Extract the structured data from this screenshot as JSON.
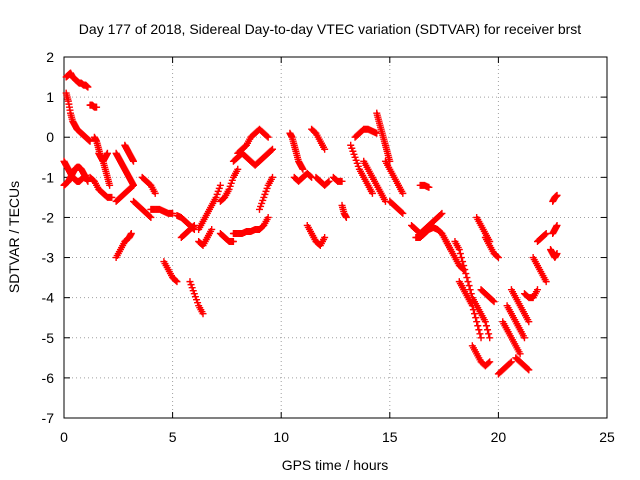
{
  "chart_data": {
    "type": "scatter",
    "title": "Day 177 of 2018, Sidereal Day-to-day VTEC variation (SDTVAR) for receiver brst",
    "xlabel": "GPS time / hours",
    "ylabel": "SDTVAR / TECUs",
    "xlim": [
      0,
      25
    ],
    "ylim": [
      -7,
      2
    ],
    "xticks": [
      "0",
      "5",
      "10",
      "15",
      "20",
      "25"
    ],
    "yticks": [
      "2",
      "1",
      "0",
      "-1",
      "-2",
      "-3",
      "-4",
      "-5",
      "-6",
      "-7"
    ],
    "grid": true,
    "legend": "none",
    "marker": "plus",
    "series_color": "#ff0000",
    "series": [
      {
        "x": [
          0.1,
          0.2,
          0.3,
          0.4,
          0.5,
          0.6,
          0.7,
          0.8,
          0.9,
          1.0,
          1.1
        ],
        "y": [
          1.5,
          1.55,
          1.6,
          1.5,
          1.45,
          1.4,
          1.35,
          1.35,
          1.3,
          1.3,
          1.25
        ]
      },
      {
        "x": [
          0.1,
          0.2,
          0.3,
          0.4,
          0.5,
          0.6,
          0.7,
          0.8,
          0.9,
          1.0,
          1.1,
          1.2
        ],
        "y": [
          1.1,
          0.9,
          0.6,
          0.4,
          0.3,
          0.2,
          0.15,
          0.1,
          0.05,
          0.0,
          -0.05,
          -0.1
        ]
      },
      {
        "x": [
          0.0,
          0.1,
          0.2,
          0.3,
          0.4,
          0.5,
          0.6,
          0.7,
          0.8,
          0.9,
          1.0
        ],
        "y": [
          -0.6,
          -0.7,
          -0.8,
          -0.9,
          -1.0,
          -1.05,
          -1.1,
          -1.1,
          -1.05,
          -1.0,
          -0.95
        ]
      },
      {
        "x": [
          0.0,
          0.1,
          0.2,
          0.3,
          0.4,
          0.5,
          0.6,
          0.7,
          0.8,
          0.9,
          1.0,
          1.1
        ],
        "y": [
          -1.2,
          -1.15,
          -1.1,
          -1.0,
          -0.9,
          -0.8,
          -0.75,
          -0.75,
          -0.8,
          -0.9,
          -1.0,
          -1.1
        ]
      },
      {
        "x": [
          1.2,
          1.4,
          1.6,
          1.8,
          2.0,
          2.2
        ],
        "y": [
          -1.0,
          -1.1,
          -1.3,
          -1.4,
          -1.5,
          -1.5
        ]
      },
      {
        "x": [
          1.2,
          1.3,
          1.4,
          1.5
        ],
        "y": [
          0.8,
          0.8,
          0.75,
          0.75
        ]
      },
      {
        "x": [
          1.4,
          1.5,
          1.6,
          1.7,
          1.8,
          1.9,
          2.0
        ],
        "y": [
          0.0,
          -0.1,
          -0.3,
          -0.5,
          -0.6,
          -0.5,
          -0.4
        ]
      },
      {
        "x": [
          1.6,
          1.7,
          1.8,
          1.9,
          2.0,
          2.1
        ],
        "y": [
          -0.4,
          -0.5,
          -0.6,
          -0.8,
          -1.0,
          -1.2
        ]
      },
      {
        "x": [
          2.4,
          2.6,
          2.8,
          3.0,
          3.2
        ],
        "y": [
          -1.6,
          -1.5,
          -1.4,
          -1.3,
          -1.2
        ]
      },
      {
        "x": [
          2.4,
          2.5,
          2.6,
          2.7,
          2.8,
          2.9,
          3.0,
          3.1,
          3.2
        ],
        "y": [
          -0.4,
          -0.5,
          -0.6,
          -0.7,
          -0.8,
          -0.9,
          -1.0,
          -1.1,
          -1.2
        ]
      },
      {
        "x": [
          2.8,
          2.9,
          3.0,
          3.1,
          3.2
        ],
        "y": [
          -0.2,
          -0.3,
          -0.4,
          -0.5,
          -0.6
        ]
      },
      {
        "x": [
          2.4,
          2.6,
          2.8,
          3.0,
          3.1
        ],
        "y": [
          -3.0,
          -2.8,
          -2.6,
          -2.5,
          -2.4
        ]
      },
      {
        "x": [
          3.2,
          3.4,
          3.6,
          3.8,
          4.0
        ],
        "y": [
          -1.6,
          -1.7,
          -1.8,
          -1.9,
          -2.0
        ]
      },
      {
        "x": [
          3.6,
          3.8,
          4.0,
          4.2
        ],
        "y": [
          -1.0,
          -1.1,
          -1.2,
          -1.4
        ]
      },
      {
        "x": [
          4.0,
          4.2,
          4.4,
          4.6,
          4.8,
          5.0
        ],
        "y": [
          -1.8,
          -1.8,
          -1.8,
          -1.85,
          -1.9,
          -1.9
        ]
      },
      {
        "x": [
          4.6,
          4.8,
          5.0,
          5.2
        ],
        "y": [
          -3.1,
          -3.3,
          -3.5,
          -3.6
        ]
      },
      {
        "x": [
          5.2,
          5.4,
          5.6,
          5.8,
          6.0
        ],
        "y": [
          -1.95,
          -2.0,
          -2.1,
          -2.2,
          -2.3
        ]
      },
      {
        "x": [
          5.4,
          5.6,
          5.8,
          6.0
        ],
        "y": [
          -2.5,
          -2.4,
          -2.3,
          -2.2
        ]
      },
      {
        "x": [
          5.8,
          6.0,
          6.2,
          6.4
        ],
        "y": [
          -3.6,
          -3.9,
          -4.2,
          -4.4
        ]
      },
      {
        "x": [
          6.2,
          6.4,
          6.6,
          6.8,
          7.0,
          7.2
        ],
        "y": [
          -2.3,
          -2.1,
          -1.9,
          -1.7,
          -1.5,
          -1.2
        ]
      },
      {
        "x": [
          6.2,
          6.4,
          6.6,
          6.8
        ],
        "y": [
          -2.6,
          -2.7,
          -2.5,
          -2.3
        ]
      },
      {
        "x": [
          7.2,
          7.4,
          7.6,
          7.8,
          8.0
        ],
        "y": [
          -1.6,
          -1.5,
          -1.3,
          -1.0,
          -0.8
        ]
      },
      {
        "x": [
          7.2,
          7.4,
          7.6,
          7.8
        ],
        "y": [
          -2.4,
          -2.5,
          -2.6,
          -2.6
        ]
      },
      {
        "x": [
          7.8,
          8.0,
          8.2,
          8.4,
          8.6,
          8.8,
          9.0,
          9.2,
          9.4
        ],
        "y": [
          -2.4,
          -2.4,
          -2.4,
          -2.35,
          -2.35,
          -2.3,
          -2.3,
          -2.2,
          -2.0
        ]
      },
      {
        "x": [
          8.0,
          8.2,
          8.4,
          8.6,
          8.8,
          9.0,
          9.2,
          9.4
        ],
        "y": [
          -0.4,
          -0.3,
          -0.2,
          0.0,
          0.1,
          0.2,
          0.1,
          0.0
        ]
      },
      {
        "x": [
          7.8,
          8.0,
          8.2,
          8.4,
          8.6,
          8.8,
          9.0,
          9.2,
          9.4,
          9.6
        ],
        "y": [
          -0.6,
          -0.5,
          -0.4,
          -0.5,
          -0.6,
          -0.7,
          -0.6,
          -0.5,
          -0.4,
          -0.3
        ]
      },
      {
        "x": [
          9.0,
          9.2,
          9.4,
          9.6
        ],
        "y": [
          -1.8,
          -1.5,
          -1.2,
          -1.0
        ]
      },
      {
        "x": [
          10.4,
          10.5,
          10.6,
          10.7,
          10.8,
          10.9,
          11.0
        ],
        "y": [
          0.1,
          0.0,
          -0.2,
          -0.4,
          -0.6,
          -0.7,
          -0.8
        ]
      },
      {
        "x": [
          10.6,
          10.8,
          11.0,
          11.2,
          11.4
        ],
        "y": [
          -1.0,
          -1.1,
          -1.0,
          -0.9,
          -1.0
        ]
      },
      {
        "x": [
          11.4,
          11.6,
          11.8,
          12.0
        ],
        "y": [
          0.2,
          0.1,
          -0.1,
          -0.3
        ]
      },
      {
        "x": [
          11.2,
          11.4,
          11.6,
          11.8,
          12.0
        ],
        "y": [
          -2.2,
          -2.4,
          -2.6,
          -2.7,
          -2.5
        ]
      },
      {
        "x": [
          11.6,
          11.8,
          12.0,
          12.2
        ],
        "y": [
          -1.0,
          -1.1,
          -1.2,
          -1.1
        ]
      },
      {
        "x": [
          12.4,
          12.6,
          12.8
        ],
        "y": [
          -1.0,
          -1.1,
          -1.1
        ]
      },
      {
        "x": [
          12.8,
          12.9,
          13.0
        ],
        "y": [
          -1.7,
          -1.9,
          -2.0
        ]
      },
      {
        "x": [
          13.2,
          13.4,
          13.6,
          13.8,
          14.0,
          14.2
        ],
        "y": [
          -0.2,
          -0.5,
          -0.8,
          -1.0,
          -1.2,
          -1.4
        ]
      },
      {
        "x": [
          13.4,
          13.6,
          13.8,
          14.0,
          14.2,
          14.4
        ],
        "y": [
          0.0,
          0.1,
          0.2,
          0.2,
          0.15,
          0.1
        ]
      },
      {
        "x": [
          13.8,
          14.0,
          14.2,
          14.4,
          14.6,
          14.8
        ],
        "y": [
          -0.6,
          -0.8,
          -1.0,
          -1.2,
          -1.4,
          -1.6
        ]
      },
      {
        "x": [
          14.4,
          14.5,
          14.6,
          14.7,
          14.8,
          14.9,
          15.0
        ],
        "y": [
          0.6,
          0.4,
          0.2,
          0.0,
          -0.2,
          -0.4,
          -0.6
        ]
      },
      {
        "x": [
          14.8,
          15.0,
          15.2,
          15.4,
          15.6
        ],
        "y": [
          -0.6,
          -0.8,
          -1.0,
          -1.2,
          -1.4
        ]
      },
      {
        "x": [
          15.0,
          15.2,
          15.4,
          15.6
        ],
        "y": [
          -1.6,
          -1.7,
          -1.8,
          -1.9
        ]
      },
      {
        "x": [
          16.4,
          16.6,
          16.8
        ],
        "y": [
          -1.2,
          -1.2,
          -1.25
        ]
      },
      {
        "x": [
          16.0,
          16.2,
          16.4,
          16.6,
          16.8,
          17.0,
          17.2,
          17.4
        ],
        "y": [
          -2.2,
          -2.3,
          -2.4,
          -2.3,
          -2.2,
          -2.1,
          -2.0,
          -1.9
        ]
      },
      {
        "x": [
          16.2,
          16.4,
          16.6,
          16.8,
          17.0,
          17.2,
          17.4,
          17.6,
          17.8
        ],
        "y": [
          -2.5,
          -2.5,
          -2.4,
          -2.3,
          -2.25,
          -2.3,
          -2.4,
          -2.6,
          -2.8
        ]
      },
      {
        "x": [
          17.6,
          17.8,
          18.0,
          18.2,
          18.4
        ],
        "y": [
          -2.6,
          -2.8,
          -3.0,
          -3.2,
          -3.3
        ]
      },
      {
        "x": [
          18.0,
          18.2,
          18.4,
          18.6,
          18.8,
          19.0
        ],
        "y": [
          -2.6,
          -2.8,
          -3.2,
          -3.6,
          -4.0,
          -4.2
        ]
      },
      {
        "x": [
          18.2,
          18.4,
          18.6,
          18.8,
          19.0,
          19.2
        ],
        "y": [
          -3.6,
          -3.8,
          -4.0,
          -4.2,
          -4.6,
          -5.0
        ]
      },
      {
        "x": [
          18.8,
          19.0,
          19.2,
          19.4,
          19.6
        ],
        "y": [
          -5.2,
          -5.4,
          -5.6,
          -5.7,
          -5.6
        ]
      },
      {
        "x": [
          19.0,
          19.2,
          19.4,
          19.6
        ],
        "y": [
          -4.2,
          -4.4,
          -4.6,
          -5.0
        ]
      },
      {
        "x": [
          19.2,
          19.4,
          19.6,
          19.8
        ],
        "y": [
          -3.8,
          -3.9,
          -4.0,
          -4.1
        ]
      },
      {
        "x": [
          19.0,
          19.2,
          19.4,
          19.6
        ],
        "y": [
          -2.0,
          -2.2,
          -2.4,
          -2.6
        ]
      },
      {
        "x": [
          19.4,
          19.6,
          19.8,
          20.0
        ],
        "y": [
          -2.5,
          -2.7,
          -2.9,
          -3.0
        ]
      },
      {
        "x": [
          20.0,
          20.2,
          20.4,
          20.6
        ],
        "y": [
          -5.9,
          -5.8,
          -5.7,
          -5.6
        ]
      },
      {
        "x": [
          20.2,
          20.4,
          20.6,
          20.8,
          21.0
        ],
        "y": [
          -4.6,
          -4.8,
          -5.0,
          -5.2,
          -5.4
        ]
      },
      {
        "x": [
          20.4,
          20.6,
          20.8,
          21.0,
          21.2
        ],
        "y": [
          -4.2,
          -4.4,
          -4.6,
          -4.8,
          -5.0
        ]
      },
      {
        "x": [
          20.8,
          21.0,
          21.2,
          21.4
        ],
        "y": [
          -5.5,
          -5.6,
          -5.7,
          -5.8
        ]
      },
      {
        "x": [
          20.6,
          20.8,
          21.0,
          21.2,
          21.4
        ],
        "y": [
          -3.8,
          -4.0,
          -4.2,
          -4.4,
          -4.6
        ]
      },
      {
        "x": [
          21.2,
          21.4,
          21.6,
          21.8
        ],
        "y": [
          -3.9,
          -4.0,
          -4.0,
          -3.8
        ]
      },
      {
        "x": [
          21.6,
          21.8,
          22.0,
          22.2
        ],
        "y": [
          -3.0,
          -3.2,
          -3.4,
          -3.6
        ]
      },
      {
        "x": [
          21.8,
          22.0,
          22.2
        ],
        "y": [
          -2.6,
          -2.5,
          -2.4
        ]
      },
      {
        "x": [
          22.4,
          22.5,
          22.6,
          22.7
        ],
        "y": [
          -2.8,
          -2.9,
          -3.0,
          -2.9
        ]
      },
      {
        "x": [
          22.5,
          22.6,
          22.7
        ],
        "y": [
          -2.4,
          -2.3,
          -2.2
        ]
      },
      {
        "x": [
          22.5,
          22.6,
          22.7
        ],
        "y": [
          -1.6,
          -1.5,
          -1.45
        ]
      }
    ]
  }
}
